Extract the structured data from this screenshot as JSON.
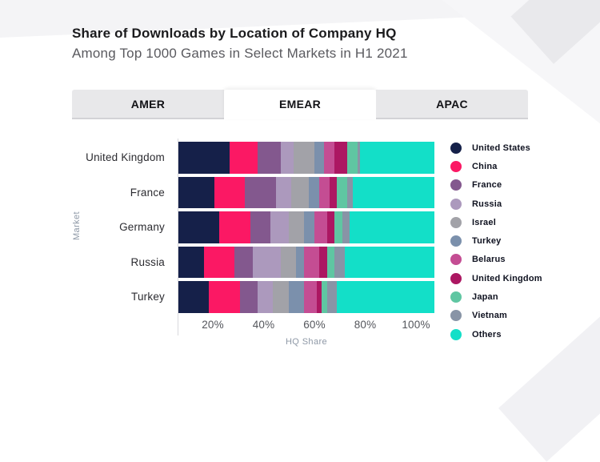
{
  "header": {
    "title": "Share of Downloads by Location of Company HQ",
    "subtitle": "Among Top 1000 Games in Select Markets in H1 2021"
  },
  "tabs": [
    {
      "label": "AMER",
      "active": false
    },
    {
      "label": "EMEAR",
      "active": true
    },
    {
      "label": "APAC",
      "active": false
    }
  ],
  "chart_data": {
    "type": "bar",
    "orientation": "horizontal-stacked",
    "title": "Share of Downloads by Location of Company HQ",
    "subtitle": "Among Top 1000 Games in Select Markets in H1 2021",
    "xlabel": "HQ Share",
    "ylabel": "Market",
    "xlim": [
      0,
      100
    ],
    "x_ticks": [
      "20%",
      "40%",
      "60%",
      "80%",
      "100%"
    ],
    "grid": false,
    "legend_position": "right",
    "categories": [
      "United Kingdom",
      "France",
      "Germany",
      "Russia",
      "Turkey"
    ],
    "series": [
      {
        "name": "United States",
        "color": "#152049",
        "values": [
          20,
          14,
          16,
          10,
          12
        ]
      },
      {
        "name": "China",
        "color": "#fb1864",
        "values": [
          11,
          12,
          12,
          12,
          12
        ]
      },
      {
        "name": "France",
        "color": "#83588e",
        "values": [
          9,
          12,
          8,
          7,
          7
        ]
      },
      {
        "name": "Russia",
        "color": "#ac99bd",
        "values": [
          5,
          6,
          7,
          11,
          6
        ]
      },
      {
        "name": "Israel",
        "color": "#a2a2a8",
        "values": [
          8,
          7,
          6,
          6,
          6
        ]
      },
      {
        "name": "Turkey",
        "color": "#7b90ac",
        "values": [
          4,
          4,
          4,
          3,
          6
        ]
      },
      {
        "name": "Belarus",
        "color": "#c44d93",
        "values": [
          4,
          4,
          5,
          6,
          5
        ]
      },
      {
        "name": "United Kingdom",
        "color": "#ac1762",
        "values": [
          5,
          3,
          3,
          3,
          2
        ]
      },
      {
        "name": "Japan",
        "color": "#5fc6a2",
        "values": [
          4,
          4,
          3,
          3,
          2
        ]
      },
      {
        "name": "Vietnam",
        "color": "#8894a6",
        "values": [
          1,
          2,
          3,
          4,
          4
        ]
      },
      {
        "name": "Others",
        "color": "#13dfc8",
        "values": [
          29,
          32,
          33,
          35,
          38
        ]
      }
    ]
  }
}
